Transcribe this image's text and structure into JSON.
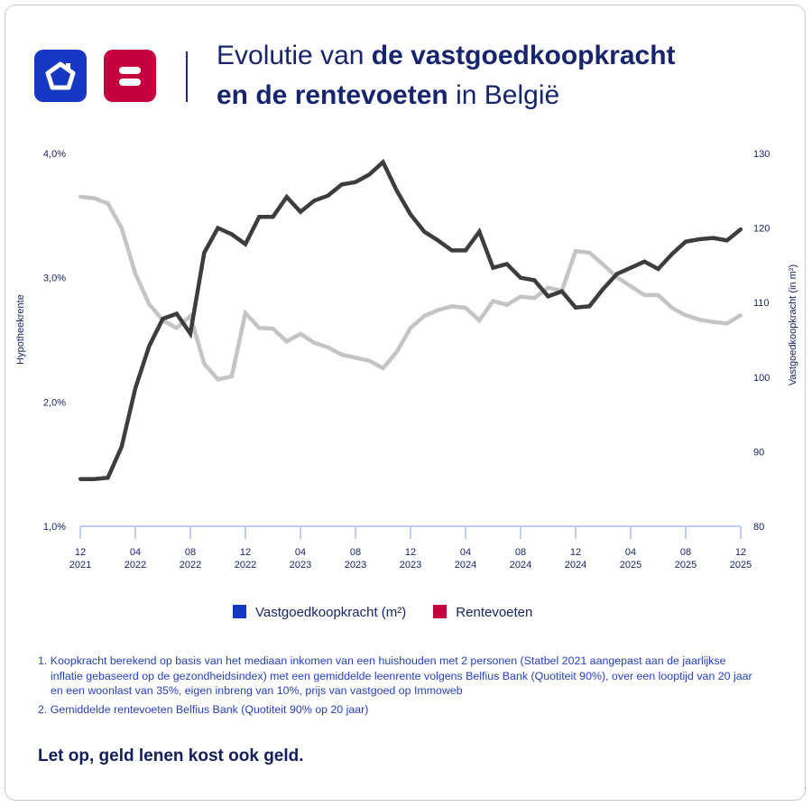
{
  "header": {
    "title_part1": "Evolutie van ",
    "title_bold1": "de vastgoedkoopkracht",
    "title_bold2": "en de rentevoeten",
    "title_part2": " in België",
    "logos": [
      "home-icon",
      "bank-icon"
    ]
  },
  "colors": {
    "brand_blue": "#1537c4",
    "brand_red": "#c4003f",
    "dark_line": "#3d3d3d",
    "light_line": "#c4c4c4",
    "text": "#17246e"
  },
  "chart_data": {
    "type": "line",
    "title": "Evolutie van de vastgoedkoopkracht en de rentevoeten in België",
    "ylabel_left": "Hypotheekrente",
    "ylabel_right": "Vastgoedkoopkracht (in m²)",
    "ylim_left": [
      1.0,
      4.0
    ],
    "ylim_right": [
      80,
      130
    ],
    "yticks_left": [
      "1,0%",
      "2,0%",
      "3,0%",
      "4,0%"
    ],
    "yticks_left_values": [
      1.0,
      2.0,
      3.0,
      4.0
    ],
    "yticks_right": [
      "80",
      "90",
      "100",
      "110",
      "120",
      "130"
    ],
    "yticks_right_values": [
      80,
      90,
      100,
      110,
      120,
      130
    ],
    "x_start": "2021-12",
    "x_frequency": "monthly",
    "xticks": [
      [
        "12",
        "2021"
      ],
      [
        "04",
        "2022"
      ],
      [
        "08",
        "2022"
      ],
      [
        "12",
        "2022"
      ],
      [
        "04",
        "2023"
      ],
      [
        "08",
        "2023"
      ],
      [
        "12",
        "2023"
      ],
      [
        "04",
        "2024"
      ],
      [
        "08",
        "2024"
      ],
      [
        "12",
        "2024"
      ],
      [
        "04",
        "2025"
      ],
      [
        "08",
        "2025"
      ],
      [
        "12",
        "2025"
      ]
    ],
    "grid": false,
    "legend_position": "bottom",
    "legend": [
      {
        "label": "Vastgoedkoopkracht (m²)",
        "color": "#1537c4"
      },
      {
        "label": "Rentevoeten",
        "color": "#c4003f"
      }
    ],
    "series": [
      {
        "name": "Rentevoeten",
        "axis": "left",
        "color": "#3d3d3d",
        "values": [
          1.38,
          1.38,
          1.39,
          1.64,
          2.11,
          2.45,
          2.67,
          2.71,
          2.55,
          3.2,
          3.4,
          3.35,
          3.27,
          3.49,
          3.49,
          3.65,
          3.53,
          3.62,
          3.66,
          3.75,
          3.77,
          3.83,
          3.93,
          3.7,
          3.51,
          3.37,
          3.3,
          3.22,
          3.22,
          3.37,
          3.08,
          3.11,
          3.0,
          2.98,
          2.85,
          2.89,
          2.76,
          2.77,
          2.91,
          3.03,
          3.08,
          3.13,
          3.07,
          3.19,
          3.29,
          3.31,
          3.32,
          3.3,
          3.39
        ]
      },
      {
        "name": "Vastgoedkoopkracht (m²)",
        "axis": "right",
        "color": "#c4c4c4",
        "values": [
          124.2,
          124.0,
          123.3,
          120.0,
          113.9,
          109.8,
          107.6,
          106.6,
          108.2,
          101.8,
          99.7,
          100.1,
          108.6,
          106.6,
          106.5,
          104.8,
          105.8,
          104.6,
          104.0,
          103.0,
          102.6,
          102.2,
          101.2,
          103.4,
          106.6,
          108.2,
          109.0,
          109.5,
          109.3,
          107.6,
          110.2,
          109.7,
          110.8,
          110.6,
          112.0,
          111.6,
          116.9,
          116.7,
          115.1,
          113.4,
          112.2,
          111.0,
          111.0,
          109.3,
          108.3,
          107.7,
          107.4,
          107.2,
          108.3
        ]
      }
    ]
  },
  "footnotes": [
    "1. Koopkracht berekend op basis van het mediaan inkomen van een huishouden met 2 personen (Statbel 2021 aangepast aan de jaarlijkse inflatie gebaseerd op de gezondheidsindex) met een gemiddelde leenrente volgens Belfius Bank (Quotiteit 90%), over een looptijd van 20 jaar en een woonlast van 35%, eigen inbreng van 10%, prijs van vastgoed op Immoweb",
    "2. Gemiddelde rentevoeten Belfius Bank (Quotiteit 90% op 20 jaar)"
  ],
  "warning": "Let op, geld lenen kost ook geld."
}
